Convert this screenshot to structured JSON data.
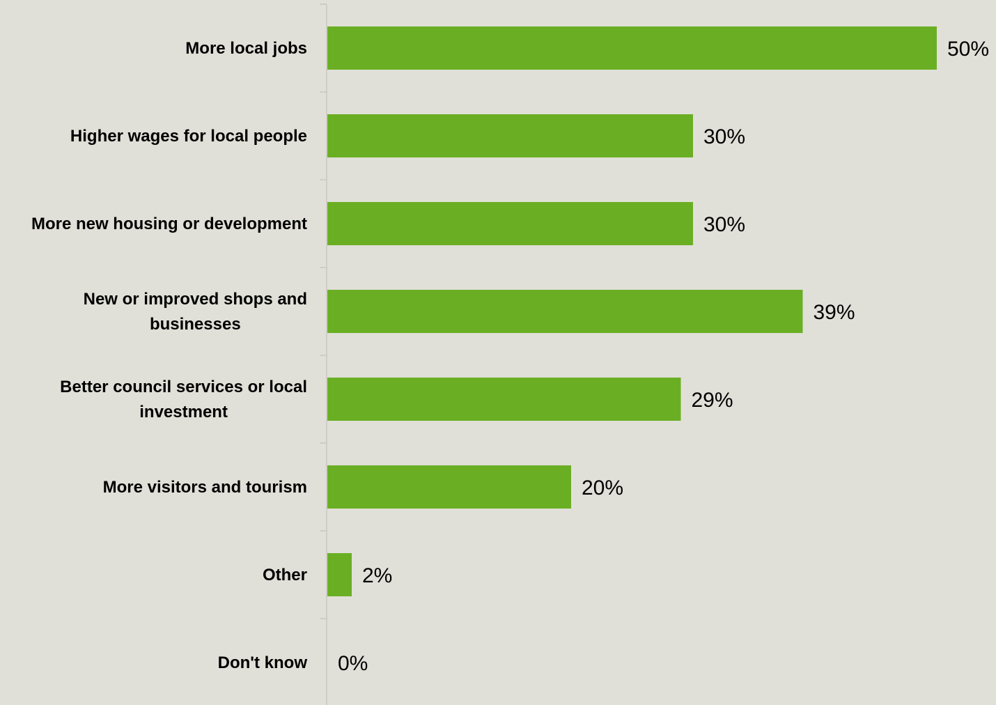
{
  "colors": {
    "background": "#e0e0d8",
    "bar": "#6aaf23",
    "axis": "#c8c8c0",
    "text": "#000000"
  },
  "chart_data": {
    "type": "bar",
    "orientation": "horizontal",
    "categories": [
      [
        "More local jobs"
      ],
      [
        "Higher wages for local people"
      ],
      [
        "More new housing or development"
      ],
      [
        "New or improved shops and",
        "businesses"
      ],
      [
        "Better council services or local",
        "investment"
      ],
      [
        "More visitors and tourism"
      ],
      [
        "Other"
      ],
      [
        "Don't know"
      ]
    ],
    "values": [
      50,
      30,
      30,
      39,
      29,
      20,
      2,
      0
    ],
    "value_labels": [
      "50%",
      "30%",
      "30%",
      "39%",
      "29%",
      "20%",
      "2%",
      "0%"
    ],
    "unit": "%",
    "xlim": [
      0,
      50
    ],
    "grid": false,
    "legend": "none"
  }
}
